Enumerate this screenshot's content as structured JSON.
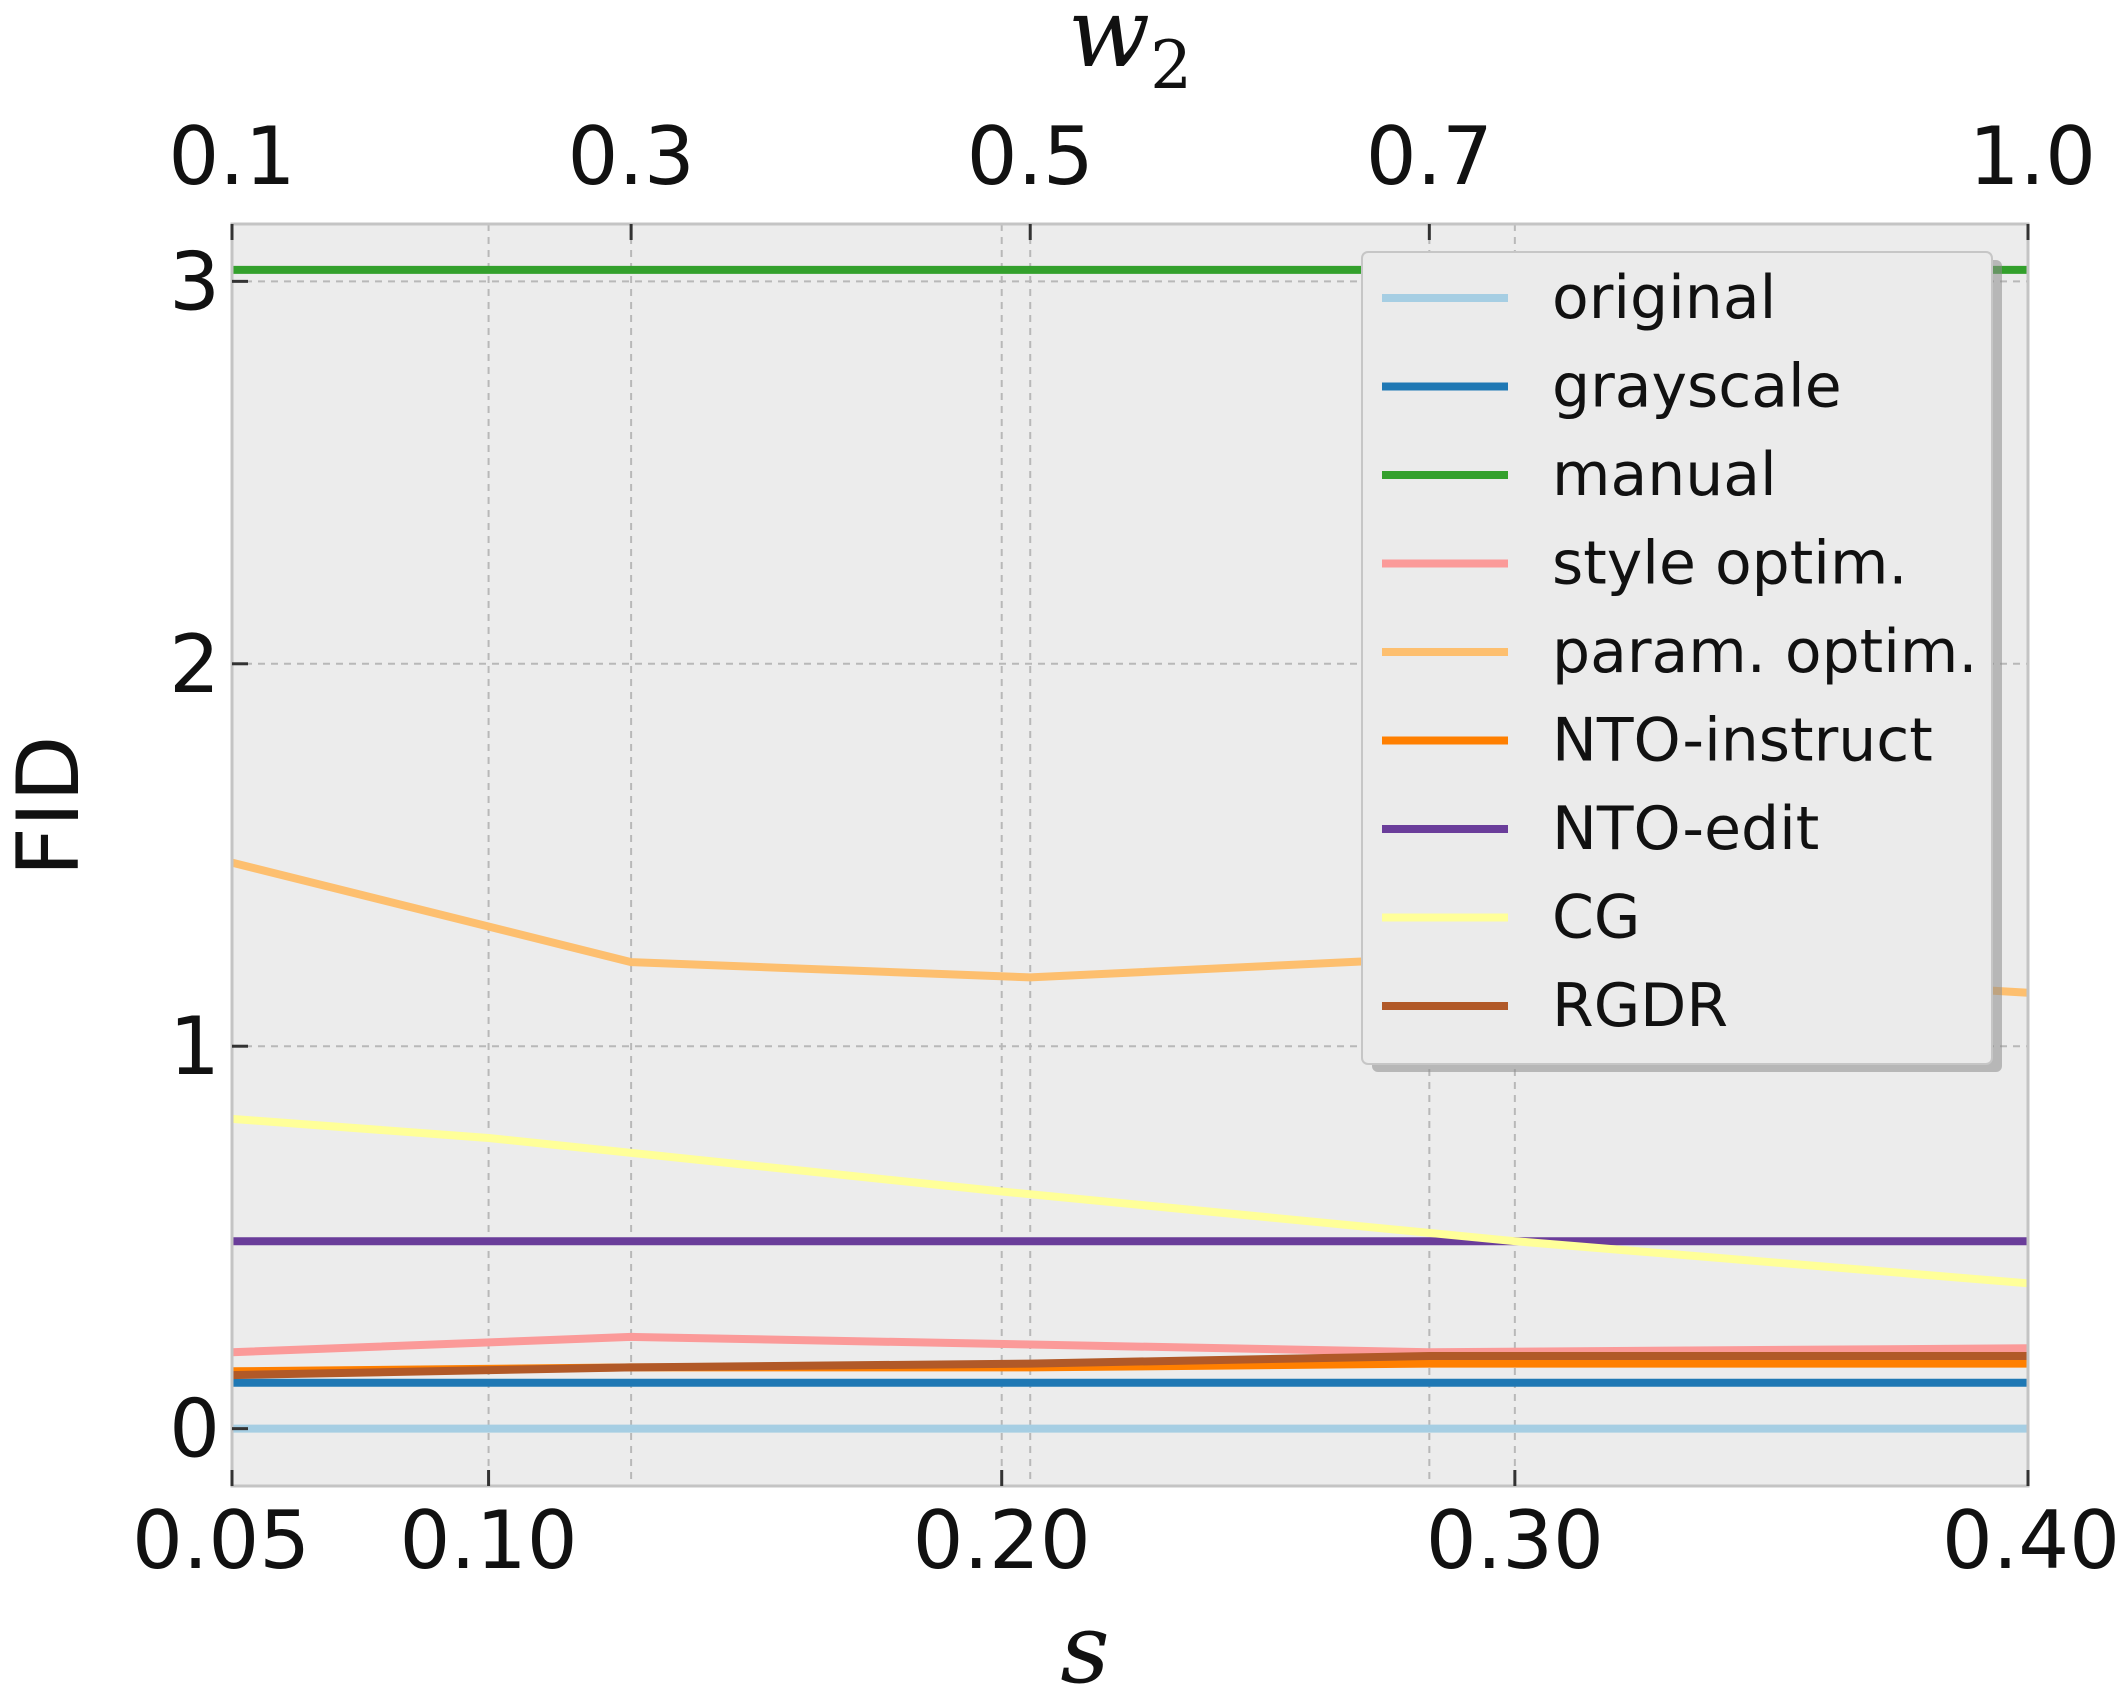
{
  "chart_data": {
    "type": "line",
    "ylabel": "FID",
    "xlabel_bottom": "s",
    "xlabel_top": "w",
    "xlabel_top_subscript": "2",
    "ylim": [
      -0.15,
      3.15
    ],
    "bottom_axis": {
      "ticks": [
        0.05,
        0.1,
        0.2,
        0.3,
        0.4
      ],
      "tick_labels": [
        "0.05",
        "0.10",
        "0.20",
        "0.30",
        "0.40"
      ],
      "range": [
        0.05,
        0.4
      ]
    },
    "top_axis": {
      "ticks": [
        0.1,
        0.3,
        0.5,
        0.7,
        1.0
      ],
      "tick_labels": [
        "0.1",
        "0.3",
        "0.5",
        "0.7",
        "1.0"
      ],
      "range": [
        0.1,
        1.0
      ]
    },
    "yticks": [
      0,
      1,
      2,
      3
    ],
    "ytick_labels": [
      "0",
      "1",
      "2",
      "3"
    ],
    "grid": true,
    "legend_position": "top-right",
    "series": [
      {
        "name": "original",
        "color": "#a6cee3",
        "axis": "bottom",
        "x": [
          0.05,
          0.4
        ],
        "y": [
          0.0,
          0.0
        ]
      },
      {
        "name": "grayscale",
        "color": "#1f78b4",
        "axis": "bottom",
        "x": [
          0.05,
          0.4
        ],
        "y": [
          0.12,
          0.12
        ]
      },
      {
        "name": "manual",
        "color": "#33a02c",
        "axis": "bottom",
        "x": [
          0.05,
          0.4
        ],
        "y": [
          3.03,
          3.03
        ]
      },
      {
        "name": "style optim.",
        "color": "#fb9a99",
        "axis": "top",
        "x": [
          0.1,
          0.3,
          0.5,
          0.7,
          1.0
        ],
        "y": [
          0.2,
          0.24,
          0.22,
          0.2,
          0.21
        ]
      },
      {
        "name": "param. optim.",
        "color": "#fdbf6f",
        "axis": "top",
        "x": [
          0.1,
          0.3,
          0.5,
          0.7,
          1.0
        ],
        "y": [
          1.48,
          1.22,
          1.18,
          1.23,
          1.14
        ]
      },
      {
        "name": "NTO-instruct",
        "color": "#ff7f00",
        "axis": "top",
        "x": [
          0.1,
          0.3,
          0.5,
          0.7,
          1.0
        ],
        "y": [
          0.15,
          0.16,
          0.16,
          0.17,
          0.17
        ]
      },
      {
        "name": "NTO-edit",
        "color": "#6a3d9a",
        "axis": "bottom",
        "x": [
          0.05,
          0.4
        ],
        "y": [
          0.49,
          0.49
        ]
      },
      {
        "name": "CG",
        "color": "#ffff99",
        "axis": "bottom",
        "x": [
          0.05,
          0.1,
          0.2,
          0.3,
          0.4
        ],
        "y": [
          0.81,
          0.76,
          0.62,
          0.49,
          0.38
        ]
      },
      {
        "name": "RGDR",
        "color": "#b15928",
        "axis": "top",
        "x": [
          0.1,
          0.3,
          0.5,
          0.7,
          1.0
        ],
        "y": [
          0.14,
          0.16,
          0.17,
          0.19,
          0.19
        ]
      }
    ]
  }
}
